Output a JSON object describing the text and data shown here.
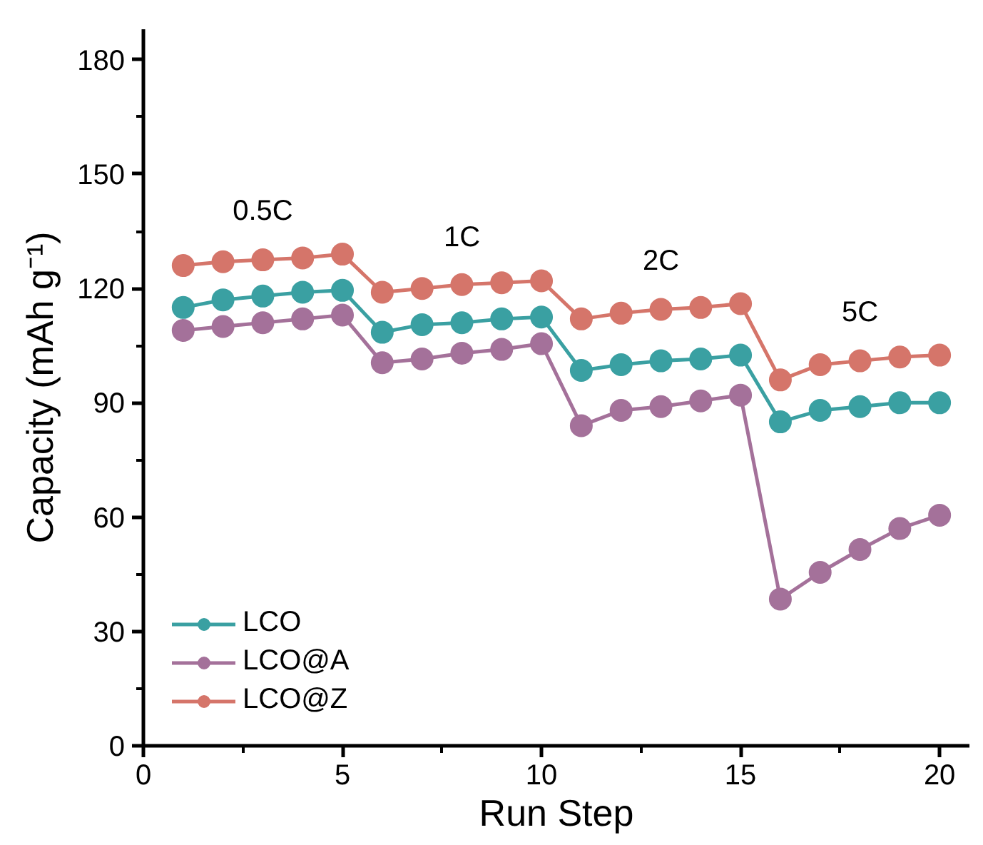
{
  "chart_data": {
    "type": "line",
    "xlabel": "Run Step",
    "ylabel": "Capacity (mAh g⁻¹)",
    "x": [
      1,
      2,
      3,
      4,
      5,
      6,
      7,
      8,
      9,
      10,
      11,
      12,
      13,
      14,
      15,
      16,
      17,
      18,
      19,
      20
    ],
    "series": [
      {
        "name": "LCO",
        "color": "#3aa0a2",
        "values": [
          115,
          117,
          118,
          119,
          119.5,
          108.5,
          110.5,
          111,
          112,
          112.5,
          98.5,
          100,
          101,
          101.5,
          102.5,
          85,
          88,
          89,
          90,
          90
        ]
      },
      {
        "name": "LCO@A",
        "color": "#a4719a",
        "values": [
          109,
          110,
          111,
          112,
          113,
          100.5,
          101.5,
          103,
          104,
          105.5,
          84,
          88,
          89,
          90.5,
          92,
          38.5,
          45.5,
          51.5,
          57,
          60.5
        ]
      },
      {
        "name": "LCO@Z",
        "color": "#d5756a",
        "values": [
          126,
          127,
          127.5,
          128,
          129,
          119,
          120,
          121,
          121.5,
          122,
          112,
          113.5,
          114.5,
          115,
          116,
          96,
          100,
          101,
          102,
          102.5
        ]
      }
    ],
    "annotations": [
      "0.5C",
      "1C",
      "2C",
      "5C"
    ],
    "xlim": [
      0,
      20.75
    ],
    "ylim": [
      0,
      188
    ],
    "xticks": [
      0,
      5,
      10,
      15,
      20
    ],
    "yticks": [
      0,
      30,
      60,
      90,
      120,
      150,
      180
    ],
    "marker": "circle",
    "line_style": "solid",
    "legend": "bottom left",
    "grid": false
  }
}
